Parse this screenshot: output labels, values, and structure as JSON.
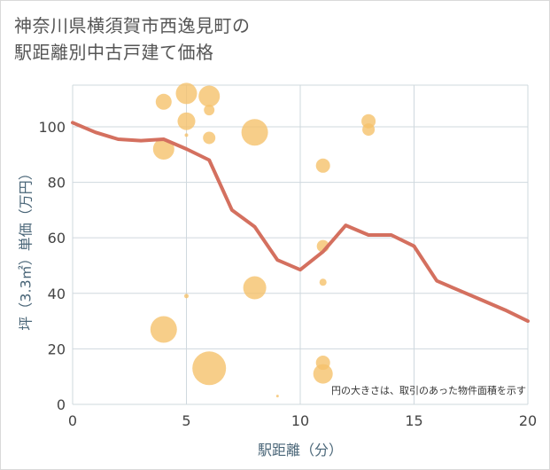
{
  "chart_data": {
    "type": "scatter",
    "title_lines": [
      "神奈川県横須賀市西逸見町の",
      "駅距離別中古戸建て価格"
    ],
    "xlabel": "駅距離（分）",
    "ylabel": "坪（3.3㎡）単価（万円）",
    "xlim": [
      0,
      20
    ],
    "ylim": [
      0,
      115
    ],
    "x_ticks": [
      0,
      5,
      10,
      15,
      20
    ],
    "y_ticks": [
      0,
      20,
      40,
      60,
      80,
      100
    ],
    "grid": true,
    "note": "円の大きさは、取引のあった物件面積を示す",
    "colors": {
      "bubble": "#f5c26b",
      "line": "#d4705f",
      "grid": "#cfd8de"
    },
    "points": [
      {
        "x": 4,
        "y": 109,
        "size": 9
      },
      {
        "x": 4,
        "y": 92,
        "size": 12
      },
      {
        "x": 4,
        "y": 27,
        "size": 15
      },
      {
        "x": 5,
        "y": 112,
        "size": 12
      },
      {
        "x": 5,
        "y": 102,
        "size": 10
      },
      {
        "x": 5,
        "y": 97,
        "size": 2
      },
      {
        "x": 5,
        "y": 39,
        "size": 2.5
      },
      {
        "x": 6,
        "y": 111,
        "size": 12
      },
      {
        "x": 6,
        "y": 106,
        "size": 6
      },
      {
        "x": 6,
        "y": 96,
        "size": 7
      },
      {
        "x": 6,
        "y": 13,
        "size": 19
      },
      {
        "x": 8,
        "y": 98,
        "size": 15
      },
      {
        "x": 8,
        "y": 42,
        "size": 13
      },
      {
        "x": 9,
        "y": 3,
        "size": 1.5
      },
      {
        "x": 11,
        "y": 86,
        "size": 8
      },
      {
        "x": 11,
        "y": 57,
        "size": 7
      },
      {
        "x": 11,
        "y": 44,
        "size": 4
      },
      {
        "x": 11,
        "y": 15,
        "size": 8
      },
      {
        "x": 11,
        "y": 11,
        "size": 11
      },
      {
        "x": 13,
        "y": 102,
        "size": 8
      },
      {
        "x": 13,
        "y": 99,
        "size": 7
      }
    ],
    "trend_line": [
      {
        "x": 0,
        "y": 101.5
      },
      {
        "x": 1,
        "y": 98
      },
      {
        "x": 2,
        "y": 95.5
      },
      {
        "x": 3,
        "y": 95
      },
      {
        "x": 4,
        "y": 95.5
      },
      {
        "x": 5,
        "y": 92
      },
      {
        "x": 6,
        "y": 88
      },
      {
        "x": 7,
        "y": 70
      },
      {
        "x": 8,
        "y": 64
      },
      {
        "x": 9,
        "y": 52
      },
      {
        "x": 10,
        "y": 48.5
      },
      {
        "x": 11,
        "y": 55
      },
      {
        "x": 12,
        "y": 64.5
      },
      {
        "x": 13,
        "y": 61
      },
      {
        "x": 14,
        "y": 61
      },
      {
        "x": 15,
        "y": 57
      },
      {
        "x": 16,
        "y": 44.5
      },
      {
        "x": 17,
        "y": 41
      },
      {
        "x": 18,
        "y": 37.5
      },
      {
        "x": 19,
        "y": 34
      },
      {
        "x": 20,
        "y": 30
      }
    ]
  }
}
